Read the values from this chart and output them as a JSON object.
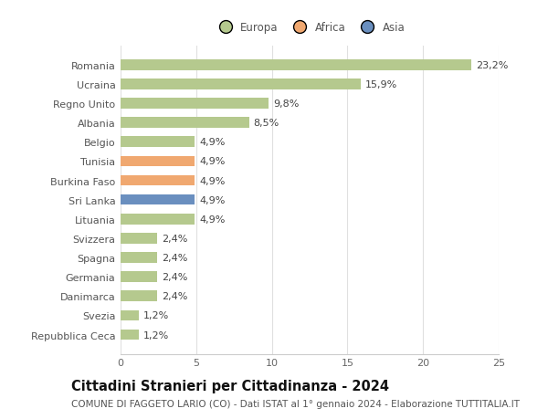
{
  "countries": [
    "Romania",
    "Ucraina",
    "Regno Unito",
    "Albania",
    "Belgio",
    "Tunisia",
    "Burkina Faso",
    "Sri Lanka",
    "Lituania",
    "Svizzera",
    "Spagna",
    "Germania",
    "Danimarca",
    "Svezia",
    "Repubblica Ceca"
  ],
  "values": [
    23.2,
    15.9,
    9.8,
    8.5,
    4.9,
    4.9,
    4.9,
    4.9,
    4.9,
    2.4,
    2.4,
    2.4,
    2.4,
    1.2,
    1.2
  ],
  "labels": [
    "23,2%",
    "15,9%",
    "9,8%",
    "8,5%",
    "4,9%",
    "4,9%",
    "4,9%",
    "4,9%",
    "4,9%",
    "2,4%",
    "2,4%",
    "2,4%",
    "2,4%",
    "1,2%",
    "1,2%"
  ],
  "continents": [
    "Europa",
    "Europa",
    "Europa",
    "Europa",
    "Europa",
    "Africa",
    "Africa",
    "Asia",
    "Europa",
    "Europa",
    "Europa",
    "Europa",
    "Europa",
    "Europa",
    "Europa"
  ],
  "colors": {
    "Europa": "#b5c98e",
    "Africa": "#f0a870",
    "Asia": "#6a8fbf"
  },
  "legend_order": [
    "Europa",
    "Africa",
    "Asia"
  ],
  "legend_colors": [
    "#b5c98e",
    "#f0a870",
    "#6a8fbf"
  ],
  "xlim": [
    0,
    25
  ],
  "xticks": [
    0,
    5,
    10,
    15,
    20,
    25
  ],
  "title": "Cittadini Stranieri per Cittadinanza - 2024",
  "subtitle": "COMUNE DI FAGGETO LARIO (CO) - Dati ISTAT al 1° gennaio 2024 - Elaborazione TUTTITALIA.IT",
  "background_color": "#ffffff",
  "grid_color": "#e0e0e0",
  "bar_height": 0.55,
  "title_fontsize": 10.5,
  "subtitle_fontsize": 7.5,
  "tick_fontsize": 8,
  "label_fontsize": 8
}
